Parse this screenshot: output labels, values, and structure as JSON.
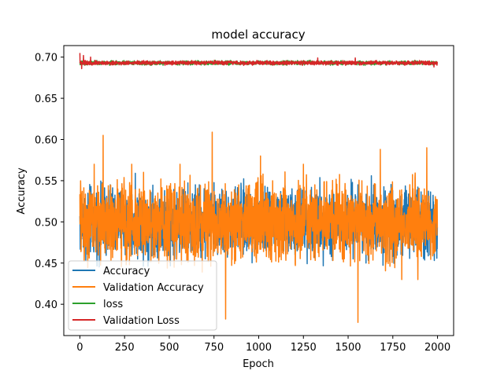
{
  "chart_data": {
    "type": "line",
    "title": "model accuracy",
    "xlabel": "Epoch",
    "ylabel": "Accuracy",
    "xlim": [
      -90,
      2090
    ],
    "ylim": [
      0.362,
      0.714
    ],
    "xticks": [
      0,
      250,
      500,
      750,
      1000,
      1250,
      1500,
      1750,
      2000
    ],
    "yticks": [
      0.4,
      0.45,
      0.5,
      0.55,
      0.6,
      0.65,
      0.7
    ],
    "ytick_labels": [
      "0.40",
      "0.45",
      "0.50",
      "0.55",
      "0.60",
      "0.65",
      "0.70"
    ],
    "xtick_labels": [
      "0",
      "250",
      "500",
      "750",
      "1000",
      "1250",
      "1500",
      "1750",
      "2000"
    ],
    "grid": false,
    "legend_position": "lower-left",
    "n_epochs": 2000,
    "series": [
      {
        "name": "Accuracy",
        "color": "#1f77b4",
        "center": 0.5,
        "spread": 0.035,
        "spikes": [
          [
            50,
            0.46
          ],
          [
            170,
            0.545
          ],
          [
            1630,
            0.556
          ],
          [
            1300,
            0.465
          ],
          [
            1600,
            0.45
          ]
        ]
      },
      {
        "name": "Validation Accuracy",
        "color": "#ff7f0e",
        "center": 0.5,
        "spread": 0.04,
        "spikes": [
          [
            5,
            0.535
          ],
          [
            130,
            0.605
          ],
          [
            740,
            0.609
          ],
          [
            815,
            0.382
          ],
          [
            1555,
            0.378
          ],
          [
            1680,
            0.588
          ],
          [
            1940,
            0.59
          ],
          [
            560,
            0.57
          ],
          [
            1010,
            0.58
          ],
          [
            1250,
            0.57
          ],
          [
            1800,
            0.43
          ],
          [
            1890,
            0.43
          ],
          [
            80,
            0.57
          ],
          [
            290,
            0.57
          ]
        ]
      },
      {
        "name": "loss",
        "color": "#2ca02c",
        "center": 0.693,
        "spread": 0.002,
        "spikes": []
      },
      {
        "name": "Validation Loss",
        "color": "#d62728",
        "center": 0.693,
        "spread": 0.002,
        "spikes": [
          [
            0,
            0.705
          ],
          [
            10,
            0.686
          ],
          [
            20,
            0.702
          ],
          [
            60,
            0.7
          ],
          [
            1330,
            0.699
          ],
          [
            1540,
            0.699
          ],
          [
            1980,
            0.688
          ]
        ]
      }
    ]
  }
}
